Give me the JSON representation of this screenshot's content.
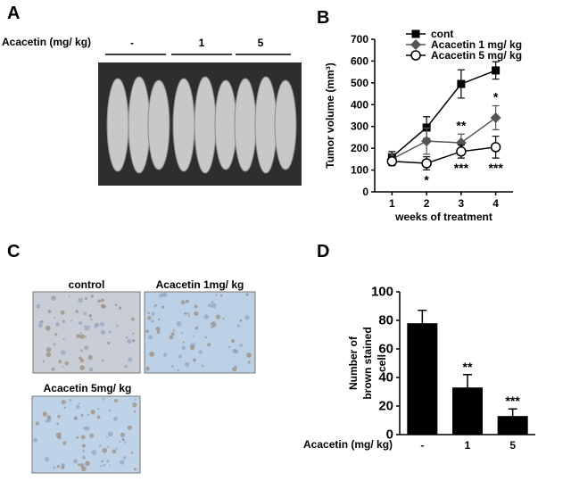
{
  "panel_a": {
    "label": "A",
    "row_label": "Acacetin (mg/ kg)",
    "doses": [
      "-",
      "1",
      "5"
    ]
  },
  "panel_c": {
    "label": "C",
    "images": [
      "control",
      "Acacetin 1mg/ kg",
      "Acacetin 5mg/ kg"
    ]
  },
  "chart_data": [
    {
      "type": "line",
      "panel_label": "B",
      "ylabel": "Tumor volume (mm³)",
      "xlabel": "weeks of treatment",
      "x": [
        1,
        2,
        3,
        4
      ],
      "xlim": [
        0.5,
        4.5
      ],
      "xticks": [
        1,
        2,
        3,
        4
      ],
      "ylim": [
        0,
        700
      ],
      "yticks": [
        0,
        100,
        200,
        300,
        400,
        500,
        600,
        700
      ],
      "legend": "top-left",
      "series": [
        {
          "name": "cont",
          "color": "#000000",
          "marker": "square",
          "values": [
            160,
            295,
            495,
            557
          ],
          "errors": [
            25,
            50,
            65,
            40
          ],
          "annotations": [
            null,
            null,
            null,
            null
          ]
        },
        {
          "name": "Acacetin 1 mg/ kg",
          "color": "#555555",
          "marker": "diamond",
          "values": [
            150,
            233,
            225,
            340
          ],
          "errors": [
            25,
            60,
            40,
            55
          ],
          "annotations": [
            null,
            null,
            "**",
            "*"
          ]
        },
        {
          "name": "Acacetin 5 mg/ kg",
          "color": "#000000",
          "marker": "circle",
          "values": [
            140,
            131,
            185,
            205
          ],
          "errors": [
            20,
            30,
            30,
            50
          ],
          "annotations": [
            null,
            "*",
            "***",
            "***"
          ]
        }
      ]
    },
    {
      "type": "bar",
      "panel_label": "D",
      "ylabel": [
        "Number of",
        "brown stained",
        "cell"
      ],
      "xlabel": "Acacetin (mg/ kg)",
      "categories": [
        "-",
        "1",
        "5"
      ],
      "values": [
        78,
        33,
        13
      ],
      "errors": [
        9,
        9,
        5
      ],
      "annotations": [
        null,
        "**",
        "***"
      ],
      "color": "#000000",
      "ylim": [
        0,
        100
      ],
      "yticks": [
        0,
        20,
        40,
        60,
        80,
        100
      ]
    }
  ]
}
